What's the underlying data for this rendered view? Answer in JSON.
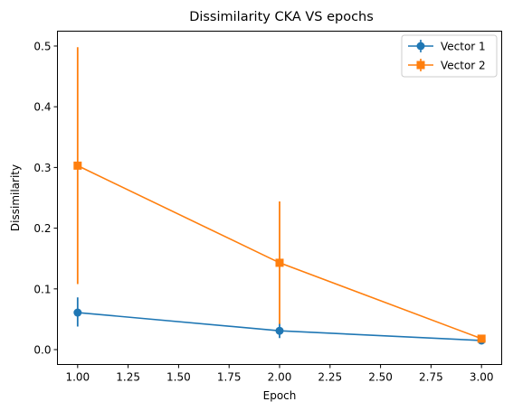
{
  "chart_data": {
    "type": "line",
    "title": "Dissimilarity CKA VS epochs",
    "xlabel": "Epoch",
    "ylabel": "Dissimilarity",
    "xlim": [
      0.9,
      3.1
    ],
    "ylim": [
      -0.0245,
      0.5245
    ],
    "xticks": [
      1.0,
      1.25,
      1.5,
      1.75,
      2.0,
      2.25,
      2.5,
      2.75,
      3.0
    ],
    "xtick_labels": [
      "1.00",
      "1.25",
      "1.50",
      "1.75",
      "2.00",
      "2.25",
      "2.50",
      "2.75",
      "3.00"
    ],
    "yticks": [
      0.0,
      0.1,
      0.2,
      0.3,
      0.4,
      0.5
    ],
    "ytick_labels": [
      "0.0",
      "0.1",
      "0.2",
      "0.3",
      "0.4",
      "0.5"
    ],
    "grid": false,
    "legend_position": "top-right",
    "x": [
      1,
      2,
      3
    ],
    "series": [
      {
        "name": "Vector 1",
        "color": "#1f77b4",
        "marker": "circle",
        "values": [
          0.061,
          0.031,
          0.015
        ],
        "err_low": [
          0.038,
          0.019,
          0.012
        ],
        "err_high": [
          0.086,
          0.044,
          0.019
        ]
      },
      {
        "name": "Vector 2",
        "color": "#ff7f0e",
        "marker": "square",
        "values": [
          0.303,
          0.143,
          0.018
        ],
        "err_low": [
          0.108,
          0.042,
          0.014
        ],
        "err_high": [
          0.498,
          0.244,
          0.022
        ]
      }
    ]
  }
}
